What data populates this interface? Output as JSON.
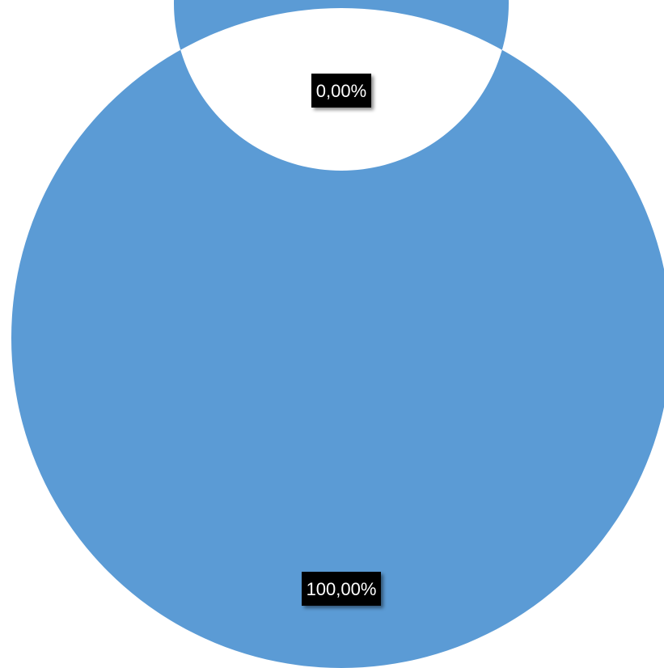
{
  "chart_data": {
    "type": "pie",
    "variant": "donut",
    "categories": [
      "",
      ""
    ],
    "values": [
      0.0,
      100.0
    ],
    "data_labels": [
      "0,00%",
      "100,00%"
    ],
    "colors": [
      "#5b9bd5",
      "#5b9bd5"
    ],
    "separator_color": "#ffffff",
    "label_box_color": "#000000",
    "label_text_color": "#ffffff",
    "title": "",
    "legend": "none"
  }
}
